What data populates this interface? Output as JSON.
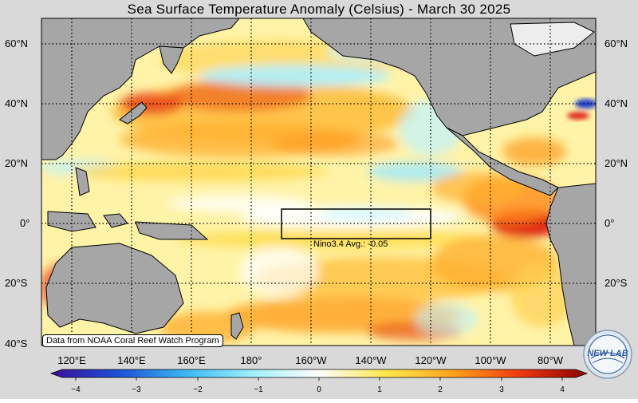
{
  "title": "Sea Surface Temperature Anomaly (Celsius) - March 30 2025",
  "lat_labels": [
    "60°N",
    "40°N",
    "20°N",
    "0°",
    "20°S",
    "40°S"
  ],
  "lon_labels": [
    "120°E",
    "140°E",
    "160°E",
    "180°",
    "160°W",
    "140°W",
    "120°W",
    "100°W",
    "80°W"
  ],
  "nino_label": "Nino3.4 Avg.: -0.05",
  "credit": "Data from NOAA Coral Reef Watch Program",
  "colorbar": {
    "min": -4,
    "max": 4,
    "ticks": [
      "−4",
      "−3",
      "−2",
      "−1",
      "0",
      "1",
      "2",
      "3",
      "4"
    ],
    "stops": [
      "#3a0f9a",
      "#1d4fd6",
      "#3ab7f2",
      "#9ff0ff",
      "#ffffff",
      "#ffe84a",
      "#ffa21a",
      "#f03a10",
      "#8a0000"
    ]
  },
  "colors": {
    "land": "#a6a6a6",
    "background": "#d9d9d9",
    "ocean_base": "#fff2b0",
    "warm": "#ffb830",
    "hot": "#e8301a",
    "cool": "#b8f1ff"
  },
  "logo_text": "NEW LAB"
}
